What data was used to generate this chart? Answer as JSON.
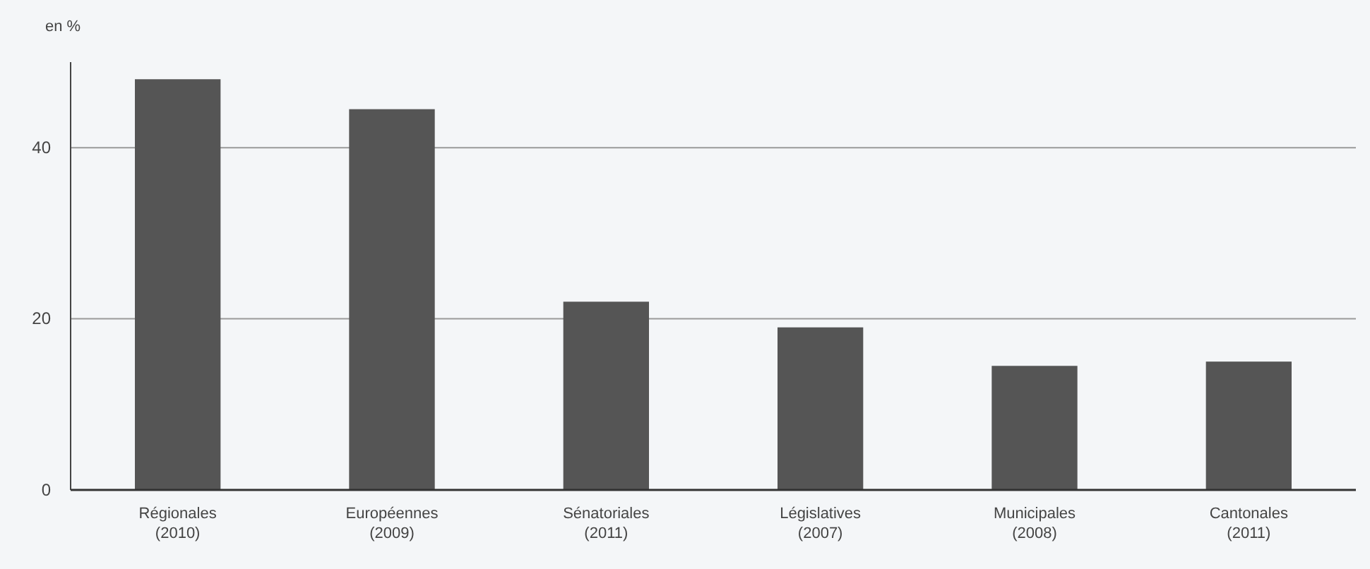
{
  "chart_data": {
    "type": "bar",
    "ylabel": "en %",
    "categories": [
      "Régionales (2010)",
      "Européennes (2009)",
      "Sénatoriales (2011)",
      "Législatives (2007)",
      "Municipales (2008)",
      "Cantonales (2011)"
    ],
    "values": [
      48,
      44.5,
      22,
      19,
      14.5,
      15
    ],
    "color": "#555555",
    "ylim": [
      0,
      50
    ],
    "yticks": [
      0,
      20,
      40
    ],
    "grid": "y"
  }
}
